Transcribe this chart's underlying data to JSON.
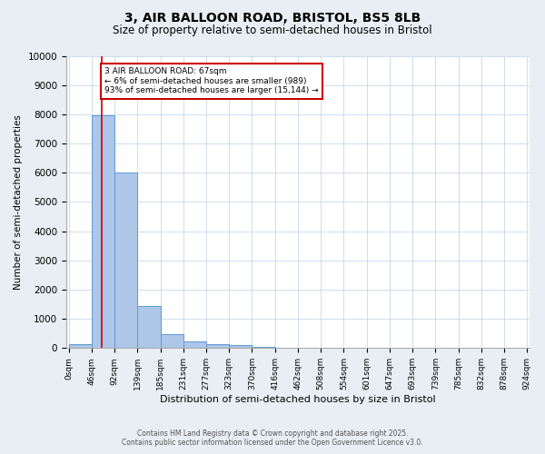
{
  "title_line1": "3, AIR BALLOON ROAD, BRISTOL, BS5 8LB",
  "title_line2": "Size of property relative to semi-detached houses in Bristol",
  "xlabel": "Distribution of semi-detached houses by size in Bristol",
  "ylabel": "Number of semi-detached properties",
  "bin_labels": [
    "0sqm",
    "46sqm",
    "92sqm",
    "139sqm",
    "185sqm",
    "231sqm",
    "277sqm",
    "323sqm",
    "370sqm",
    "416sqm",
    "462sqm",
    "508sqm",
    "554sqm",
    "601sqm",
    "647sqm",
    "693sqm",
    "739sqm",
    "785sqm",
    "832sqm",
    "878sqm",
    "924sqm"
  ],
  "bar_heights": [
    150,
    7950,
    6000,
    1430,
    470,
    220,
    120,
    90,
    50,
    0,
    0,
    0,
    0,
    0,
    0,
    0,
    0,
    0,
    0,
    0
  ],
  "bar_color": "#aec6e8",
  "bar_edge_color": "#5b9bd5",
  "vline_x": 67,
  "vline_color": "#cc0000",
  "annotation_title": "3 AIR BALLOON ROAD: 67sqm",
  "annotation_line1": "← 6% of semi-detached houses are smaller (989)",
  "annotation_line2": "93% of semi-detached houses are larger (15,144) →",
  "annotation_box_color": "#cc0000",
  "ylim": [
    0,
    10000
  ],
  "yticks": [
    0,
    1000,
    2000,
    3000,
    4000,
    5000,
    6000,
    7000,
    8000,
    9000,
    10000
  ],
  "footer_line1": "Contains HM Land Registry data © Crown copyright and database right 2025.",
  "footer_line2": "Contains public sector information licensed under the Open Government Licence v3.0.",
  "background_color": "#e8eef4",
  "plot_bg_color": "#ffffff",
  "grid_color": "#c8d8e8",
  "bin_size": 46,
  "n_bins": 20
}
